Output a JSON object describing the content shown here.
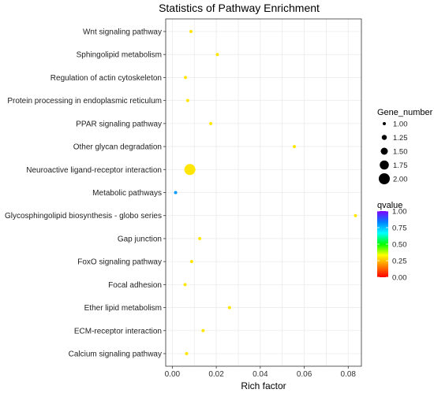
{
  "chart_data": {
    "type": "scatter",
    "title": "Statistics of Pathway Enrichment",
    "xlabel": "Rich factor",
    "ylabel": "",
    "xlim": [
      -0.003,
      0.086
    ],
    "x_ticks": [
      {
        "value": 0.0,
        "label": "0.00"
      },
      {
        "value": 0.02,
        "label": "0.02"
      },
      {
        "value": 0.04,
        "label": "0.04"
      },
      {
        "value": 0.06,
        "label": "0.06"
      },
      {
        "value": 0.08,
        "label": "0.08"
      }
    ],
    "grid": true,
    "legend_position": "right",
    "categories": [
      "Wnt signaling pathway",
      "Sphingolipid metabolism",
      "Regulation of actin cytoskeleton",
      "Protein processing in endoplasmic reticulum",
      "PPAR signaling pathway",
      "Other glycan degradation",
      "Neuroactive ligand-receptor interaction",
      "Metabolic pathways",
      "Glycosphingolipid biosynthesis - globo series",
      "Gap junction",
      "FoxO signaling pathway",
      "Focal adhesion",
      "Ether lipid metabolism",
      "ECM-receptor interaction",
      "Calcium signaling pathway"
    ],
    "points": [
      {
        "pathway": "Wnt signaling pathway",
        "rich_factor": 0.0085,
        "gene_number": 1,
        "qvalue": 0.3
      },
      {
        "pathway": "Sphingolipid metabolism",
        "rich_factor": 0.0205,
        "gene_number": 1,
        "qvalue": 0.3
      },
      {
        "pathway": "Regulation of actin cytoskeleton",
        "rich_factor": 0.006,
        "gene_number": 1,
        "qvalue": 0.3
      },
      {
        "pathway": "Protein processing in endoplasmic reticulum",
        "rich_factor": 0.007,
        "gene_number": 1,
        "qvalue": 0.3
      },
      {
        "pathway": "PPAR signaling pathway",
        "rich_factor": 0.0175,
        "gene_number": 1,
        "qvalue": 0.3
      },
      {
        "pathway": "Other glycan degradation",
        "rich_factor": 0.0555,
        "gene_number": 1,
        "qvalue": 0.3
      },
      {
        "pathway": "Neuroactive ligand-receptor interaction",
        "rich_factor": 0.008,
        "gene_number": 2,
        "qvalue": 0.3
      },
      {
        "pathway": "Metabolic pathways",
        "rich_factor": 0.0015,
        "gene_number": 1,
        "qvalue": 0.8
      },
      {
        "pathway": "Glycosphingolipid biosynthesis - globo series",
        "rich_factor": 0.0833,
        "gene_number": 1,
        "qvalue": 0.3
      },
      {
        "pathway": "Gap junction",
        "rich_factor": 0.0125,
        "gene_number": 1,
        "qvalue": 0.3
      },
      {
        "pathway": "FoxO signaling pathway",
        "rich_factor": 0.0088,
        "gene_number": 1,
        "qvalue": 0.3
      },
      {
        "pathway": "Focal adhesion",
        "rich_factor": 0.0058,
        "gene_number": 1,
        "qvalue": 0.3
      },
      {
        "pathway": "Ether lipid metabolism",
        "rich_factor": 0.026,
        "gene_number": 1,
        "qvalue": 0.3
      },
      {
        "pathway": "ECM-receptor interaction",
        "rich_factor": 0.014,
        "gene_number": 1,
        "qvalue": 0.3
      },
      {
        "pathway": "Calcium signaling pathway",
        "rich_factor": 0.0065,
        "gene_number": 1,
        "qvalue": 0.3
      }
    ],
    "size_legend": {
      "title": "Gene_number",
      "values": [
        1.0,
        1.25,
        1.5,
        1.75,
        2.0
      ],
      "labels": [
        "1.00",
        "1.25",
        "1.50",
        "1.75",
        "2.00"
      ]
    },
    "color_legend": {
      "title": "qvalue",
      "range": [
        0.0,
        1.0
      ],
      "ticks": [
        {
          "value": 1.0,
          "label": "1.00"
        },
        {
          "value": 0.75,
          "label": "0.75"
        },
        {
          "value": 0.5,
          "label": "0.50"
        },
        {
          "value": 0.25,
          "label": "0.25"
        },
        {
          "value": 0.0,
          "label": "0.00"
        }
      ],
      "stops": [
        "#ff0000",
        "#ff8000",
        "#ffff00",
        "#00ff00",
        "#00ffff",
        "#0080ff",
        "#8000ff"
      ]
    },
    "colors": {
      "panel_background": "#ffffff",
      "gridline": "#ebebeb",
      "panel_border": "#333333"
    }
  }
}
